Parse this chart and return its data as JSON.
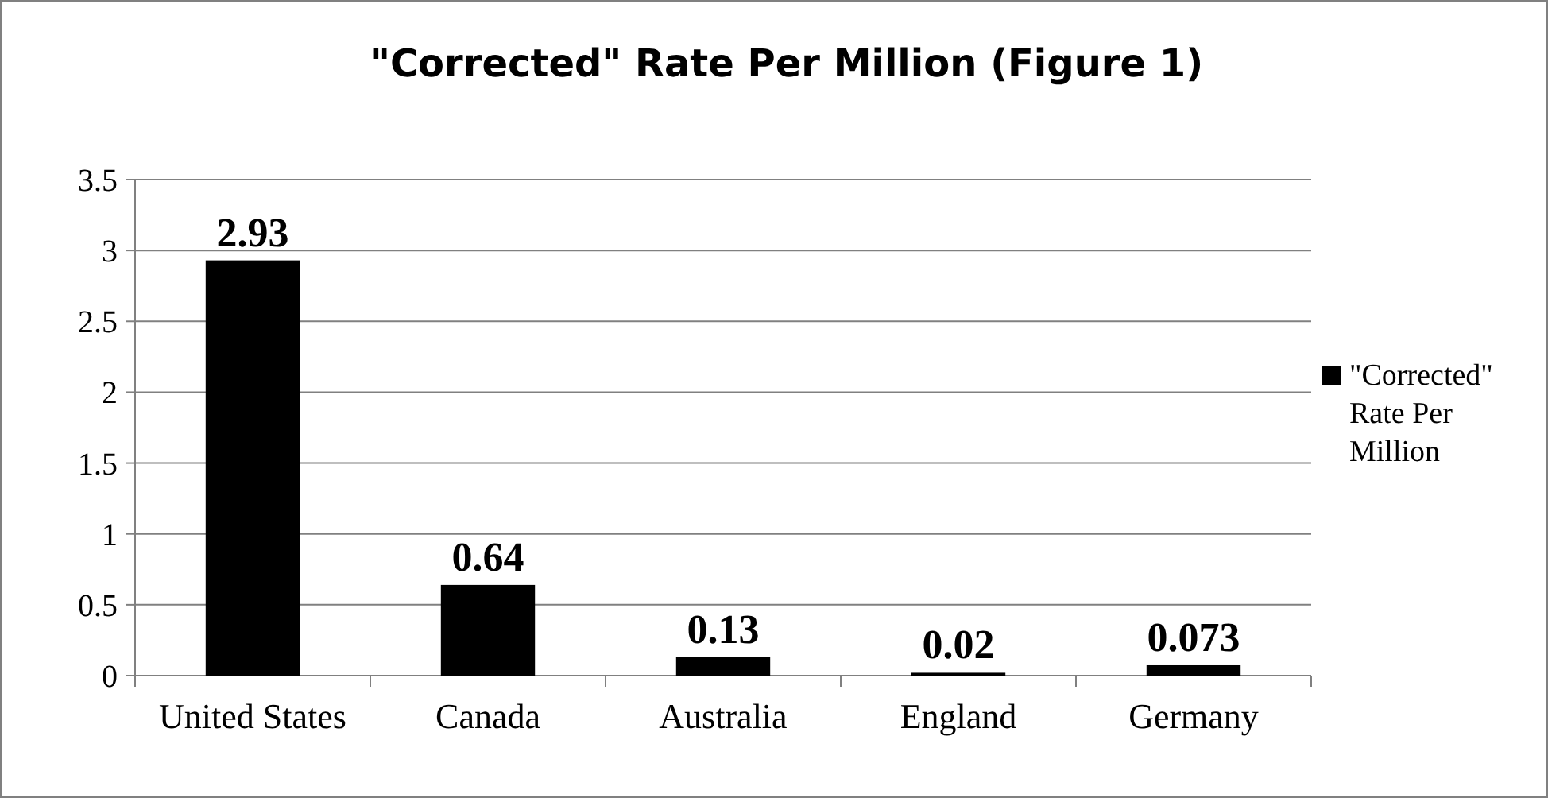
{
  "chart_data": {
    "type": "bar",
    "title": "\"Corrected\" Rate Per Million (Figure 1)",
    "categories": [
      "United States",
      "Canada",
      "Australia",
      "England",
      "Germany"
    ],
    "series": [
      {
        "name": "\"Corrected\" Rate Per Million",
        "color": "#000000",
        "values": [
          2.93,
          0.64,
          0.13,
          0.02,
          0.073
        ]
      }
    ],
    "ylim": [
      0,
      3.5
    ],
    "yticks": [
      0,
      0.5,
      1,
      1.5,
      2,
      2.5,
      3,
      3.5
    ],
    "grid": "y",
    "legend": "right",
    "data_labels": true
  }
}
